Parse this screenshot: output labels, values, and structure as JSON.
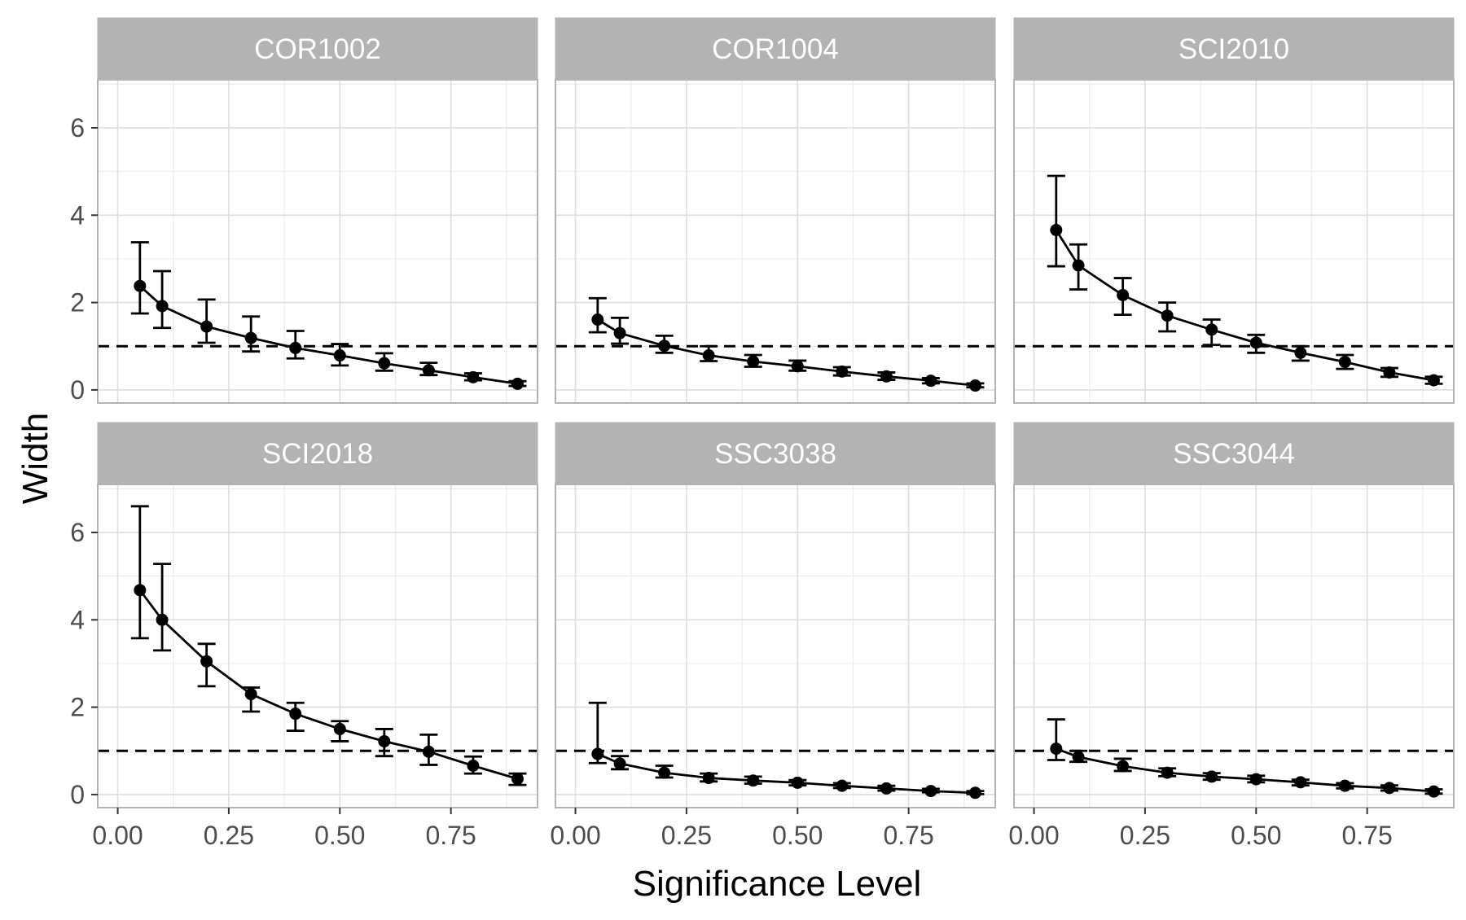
{
  "chart_data": {
    "type": "line",
    "xlabel": "Significance Level",
    "ylabel": "Width",
    "x_ticks": [
      "0.00",
      "0.25",
      "0.50",
      "0.75"
    ],
    "y_ticks": [
      "0",
      "2",
      "4",
      "6"
    ],
    "xlim": [
      -0.045,
      0.945
    ],
    "ylim": [
      -0.3,
      7.1
    ],
    "reference_line": {
      "y": 1,
      "style": "dashed"
    },
    "grid": true,
    "x": [
      0.05,
      0.1,
      0.2,
      0.3,
      0.4,
      0.5,
      0.6,
      0.7,
      0.8,
      0.9
    ],
    "panels": [
      {
        "name": "COR1002",
        "y": [
          2.38,
          1.92,
          1.45,
          1.19,
          0.96,
          0.79,
          0.61,
          0.45,
          0.29,
          0.14
        ],
        "lower": [
          1.75,
          1.42,
          1.08,
          0.88,
          0.72,
          0.56,
          0.44,
          0.34,
          0.22,
          0.09
        ],
        "upper": [
          3.38,
          2.72,
          2.07,
          1.68,
          1.35,
          1.05,
          0.84,
          0.62,
          0.38,
          0.2
        ]
      },
      {
        "name": "COR1004",
        "y": [
          1.61,
          1.3,
          1.01,
          0.79,
          0.65,
          0.54,
          0.42,
          0.31,
          0.21,
          0.1
        ],
        "lower": [
          1.32,
          1.06,
          0.85,
          0.66,
          0.53,
          0.44,
          0.33,
          0.23,
          0.15,
          0.06
        ],
        "upper": [
          2.1,
          1.65,
          1.24,
          1.0,
          0.8,
          0.67,
          0.52,
          0.4,
          0.27,
          0.15
        ]
      },
      {
        "name": "SCI2010",
        "y": [
          3.66,
          2.85,
          2.17,
          1.7,
          1.38,
          1.08,
          0.85,
          0.64,
          0.4,
          0.22
        ],
        "lower": [
          2.83,
          2.3,
          1.72,
          1.34,
          1.03,
          0.85,
          0.67,
          0.48,
          0.3,
          0.14
        ],
        "upper": [
          4.9,
          3.33,
          2.56,
          2.0,
          1.61,
          1.26,
          1.0,
          0.8,
          0.5,
          0.3
        ]
      },
      {
        "name": "SCI2018",
        "y": [
          4.68,
          4.0,
          3.05,
          2.3,
          1.85,
          1.5,
          1.22,
          0.98,
          0.66,
          0.36
        ],
        "lower": [
          3.58,
          3.3,
          2.48,
          1.9,
          1.46,
          1.22,
          0.88,
          0.68,
          0.48,
          0.22
        ],
        "upper": [
          6.6,
          5.28,
          3.45,
          2.45,
          2.1,
          1.68,
          1.5,
          1.37,
          0.87,
          0.48
        ]
      },
      {
        "name": "SSC3038",
        "y": [
          0.93,
          0.71,
          0.5,
          0.38,
          0.32,
          0.27,
          0.2,
          0.14,
          0.08,
          0.04
        ],
        "lower": [
          0.72,
          0.58,
          0.39,
          0.3,
          0.25,
          0.21,
          0.15,
          0.09,
          0.05,
          0.01
        ],
        "upper": [
          2.1,
          0.88,
          0.66,
          0.48,
          0.41,
          0.33,
          0.26,
          0.2,
          0.13,
          0.08
        ]
      },
      {
        "name": "SSC3044",
        "y": [
          1.05,
          0.86,
          0.65,
          0.5,
          0.41,
          0.35,
          0.28,
          0.2,
          0.15,
          0.07
        ],
        "lower": [
          0.79,
          0.75,
          0.54,
          0.42,
          0.34,
          0.28,
          0.21,
          0.14,
          0.09,
          0.02
        ],
        "upper": [
          1.72,
          1.0,
          0.82,
          0.6,
          0.49,
          0.43,
          0.34,
          0.26,
          0.21,
          0.12
        ]
      }
    ]
  }
}
